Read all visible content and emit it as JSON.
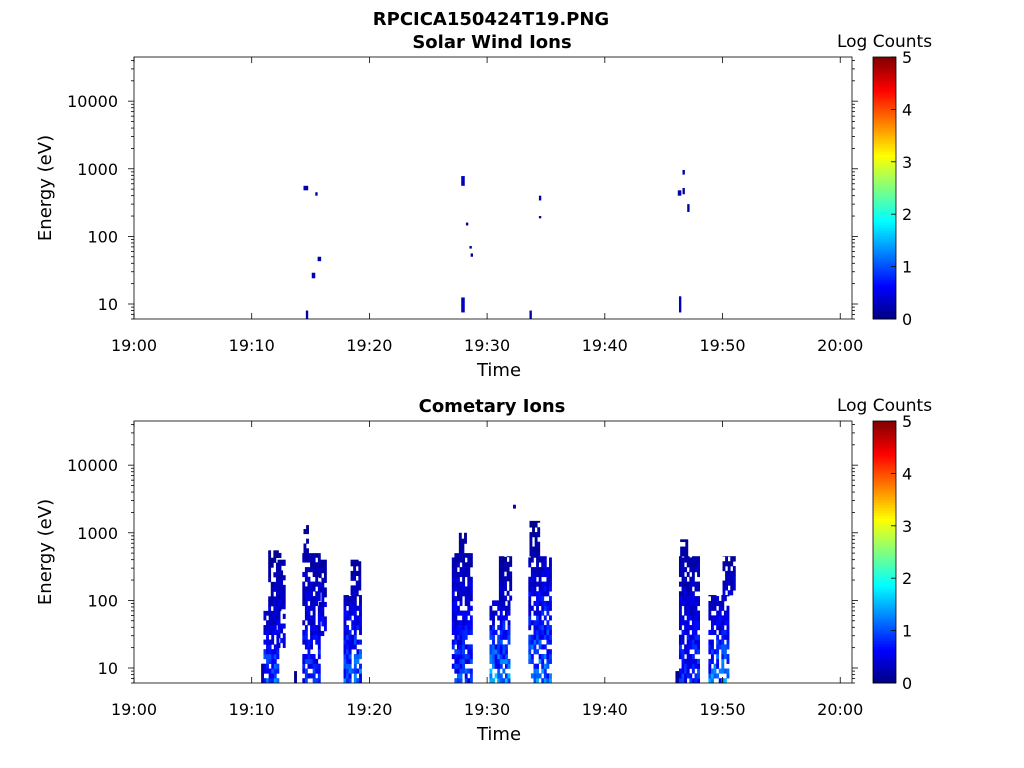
{
  "figure_title": "RPCICA150424T19.PNG",
  "colorbar": {
    "title": "Log Counts",
    "ticks": [
      "0",
      "1",
      "2",
      "3",
      "4",
      "5"
    ],
    "range": [
      0,
      5
    ],
    "colormap": "jet"
  },
  "chart_data": [
    {
      "type": "heatmap",
      "title": "Solar Wind Ions",
      "xlabel": "Time",
      "ylabel": "Energy (eV)",
      "x_ticks": [
        "19:00",
        "19:10",
        "19:20",
        "19:30",
        "19:40",
        "19:50",
        "20:00"
      ],
      "xlim_minutes": [
        0,
        61
      ],
      "y_ticks": [
        "10",
        "100",
        "1000",
        "10000"
      ],
      "ylim": [
        6,
        45000
      ],
      "y_scale": "log",
      "clim": [
        0,
        5
      ],
      "cells": [
        {
          "t0": 14.4,
          "t1": 14.8,
          "e0": 480,
          "e1": 560,
          "v": 0.2
        },
        {
          "t0": 15.4,
          "t1": 15.6,
          "e0": 400,
          "e1": 450,
          "v": 0.2
        },
        {
          "t0": 15.6,
          "t1": 15.9,
          "e0": 43,
          "e1": 50,
          "v": 0.2
        },
        {
          "t0": 15.1,
          "t1": 15.4,
          "e0": 24,
          "e1": 29,
          "v": 0.2
        },
        {
          "t0": 14.6,
          "t1": 14.8,
          "e0": 6,
          "e1": 8,
          "v": 0.2
        },
        {
          "t0": 27.8,
          "t1": 28.1,
          "e0": 560,
          "e1": 780,
          "v": 0.3
        },
        {
          "t0": 28.2,
          "t1": 28.4,
          "e0": 145,
          "e1": 160,
          "v": 0.1
        },
        {
          "t0": 28.5,
          "t1": 28.7,
          "e0": 66,
          "e1": 72,
          "v": 0.1
        },
        {
          "t0": 28.6,
          "t1": 28.8,
          "e0": 50,
          "e1": 56,
          "v": 0.1
        },
        {
          "t0": 27.8,
          "t1": 28.1,
          "e0": 7.5,
          "e1": 12.5,
          "v": 0.3
        },
        {
          "t0": 33.6,
          "t1": 33.8,
          "e0": 6,
          "e1": 8,
          "v": 0.2
        },
        {
          "t0": 34.4,
          "t1": 34.6,
          "e0": 340,
          "e1": 400,
          "v": 0.2
        },
        {
          "t0": 34.4,
          "t1": 34.6,
          "e0": 185,
          "e1": 200,
          "v": 0.1
        },
        {
          "t0": 46.6,
          "t1": 46.8,
          "e0": 820,
          "e1": 960,
          "v": 0.2
        },
        {
          "t0": 46.2,
          "t1": 46.5,
          "e0": 400,
          "e1": 480,
          "v": 0.2
        },
        {
          "t0": 46.6,
          "t1": 46.8,
          "e0": 420,
          "e1": 520,
          "v": 0.2
        },
        {
          "t0": 47.0,
          "t1": 47.2,
          "e0": 230,
          "e1": 300,
          "v": 0.2
        },
        {
          "t0": 46.3,
          "t1": 46.5,
          "e0": 7.5,
          "e1": 13,
          "v": 0.3
        }
      ]
    },
    {
      "type": "heatmap",
      "title": "Cometary Ions",
      "xlabel": "Time",
      "ylabel": "Energy (eV)",
      "x_ticks": [
        "19:00",
        "19:10",
        "19:20",
        "19:30",
        "19:40",
        "19:50",
        "20:00"
      ],
      "xlim_minutes": [
        0,
        61
      ],
      "y_ticks": [
        "10",
        "100",
        "1000",
        "10000"
      ],
      "ylim": [
        6,
        45000
      ],
      "y_scale": "log",
      "clim": [
        0,
        5
      ],
      "bursts": [
        {
          "t0": 10.8,
          "t1": 10.95,
          "e_low": 6,
          "e_high": 13,
          "v_peak": 0.3
        },
        {
          "t0": 11.0,
          "t1": 12.2,
          "e_low": 6,
          "e_high": 70,
          "v_peak": 1.3
        },
        {
          "t0": 11.4,
          "t1": 12.4,
          "e_low": 70,
          "e_high": 550,
          "v_peak": 0.5
        },
        {
          "t0": 12.2,
          "t1": 12.8,
          "e_low": 20,
          "e_high": 400,
          "v_peak": 0.7
        },
        {
          "t0": 13.6,
          "t1": 13.8,
          "e_low": 6,
          "e_high": 9,
          "v_peak": 0.2
        },
        {
          "t0": 14.3,
          "t1": 15.7,
          "e_low": 6,
          "e_high": 500,
          "v_peak": 1.0
        },
        {
          "t0": 14.4,
          "t1": 14.8,
          "e_low": 500,
          "e_high": 1300,
          "v_peak": 0.3
        },
        {
          "t0": 15.7,
          "t1": 16.2,
          "e_low": 30,
          "e_high": 400,
          "v_peak": 0.8
        },
        {
          "t0": 17.8,
          "t1": 19.2,
          "e_low": 6,
          "e_high": 120,
          "v_peak": 1.4
        },
        {
          "t0": 18.4,
          "t1": 19.2,
          "e_low": 120,
          "e_high": 400,
          "v_peak": 0.5
        },
        {
          "t0": 27.0,
          "t1": 28.6,
          "e_low": 6,
          "e_high": 500,
          "v_peak": 1.1
        },
        {
          "t0": 27.6,
          "t1": 28.2,
          "e_low": 500,
          "e_high": 1000,
          "v_peak": 0.3
        },
        {
          "t0": 30.2,
          "t1": 31.8,
          "e_low": 6,
          "e_high": 100,
          "v_peak": 1.6
        },
        {
          "t0": 31.0,
          "t1": 32.0,
          "e_low": 100,
          "e_high": 450,
          "v_peak": 0.5
        },
        {
          "t0": 32.2,
          "t1": 32.4,
          "e_low": 2300,
          "e_high": 2600,
          "v_peak": 0.2
        },
        {
          "t0": 33.5,
          "t1": 35.3,
          "e_low": 6,
          "e_high": 450,
          "v_peak": 1.4
        },
        {
          "t0": 33.6,
          "t1": 34.4,
          "e_low": 450,
          "e_high": 1500,
          "v_peak": 0.3
        },
        {
          "t0": 46.0,
          "t1": 46.3,
          "e_low": 6,
          "e_high": 9,
          "v_peak": 0.2
        },
        {
          "t0": 46.3,
          "t1": 47.9,
          "e_low": 6,
          "e_high": 450,
          "v_peak": 1.0
        },
        {
          "t0": 46.4,
          "t1": 47.0,
          "e_low": 450,
          "e_high": 800,
          "v_peak": 0.3
        },
        {
          "t0": 48.8,
          "t1": 50.4,
          "e_low": 6,
          "e_high": 120,
          "v_peak": 1.4
        },
        {
          "t0": 50.0,
          "t1": 51.0,
          "e_low": 120,
          "e_high": 450,
          "v_peak": 0.5
        }
      ]
    }
  ]
}
